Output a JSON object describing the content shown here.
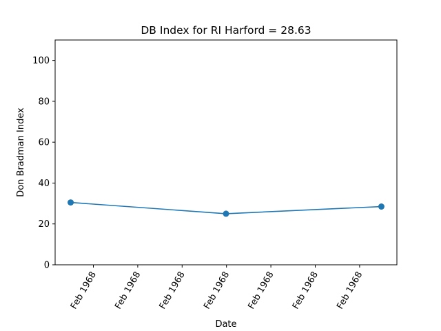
{
  "chart_data": {
    "type": "line",
    "title": "DB Index for RI Harford = 28.63",
    "xlabel": "Date",
    "ylabel": "Don Bradman Index",
    "ylim": [
      0,
      110
    ],
    "yticks": [
      0,
      20,
      40,
      60,
      80,
      100
    ],
    "x_tick_labels": [
      "Feb 1968",
      "Feb 1968",
      "Feb 1968",
      "Feb 1968",
      "Feb 1968",
      "Feb 1968",
      "Feb 1968"
    ],
    "grid": false,
    "legend": "none",
    "series": [
      {
        "color": "#1f77b4",
        "marker": "circle",
        "points": [
          {
            "x": "1968-02-01",
            "y": 30.5
          },
          {
            "x": "1968-02-08",
            "y": 25.0
          },
          {
            "x": "1968-02-15",
            "y": 28.5
          }
        ]
      }
    ]
  }
}
